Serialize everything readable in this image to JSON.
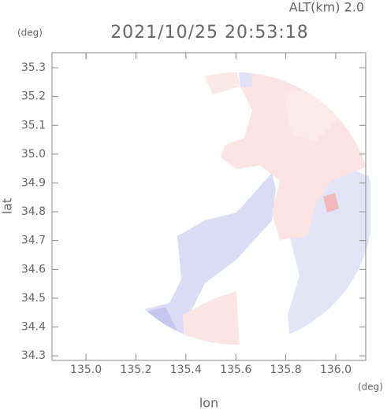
{
  "chart_data": {
    "type": "map",
    "title": "2021/10/25 20:53:18",
    "subtitle": "ALT(km) 2.0",
    "x_label": "lon",
    "y_label": "lat",
    "x_unit": "(deg)",
    "y_unit": "(deg)",
    "xlim": [
      134.864,
      136.12
    ],
    "ylim": [
      34.284,
      35.352
    ],
    "xticks": [
      {
        "value": 135.0,
        "label": "135.0"
      },
      135.2,
      135.4,
      135.6,
      135.8,
      {
        "value": 136.0,
        "label": "136.0"
      }
    ],
    "yticks": [
      34.3,
      34.4,
      34.5,
      34.6,
      34.7,
      34.8,
      34.9,
      {
        "value": 35.0,
        "label": "35.0"
      },
      35.1,
      35.2,
      35.3
    ]
  }
}
